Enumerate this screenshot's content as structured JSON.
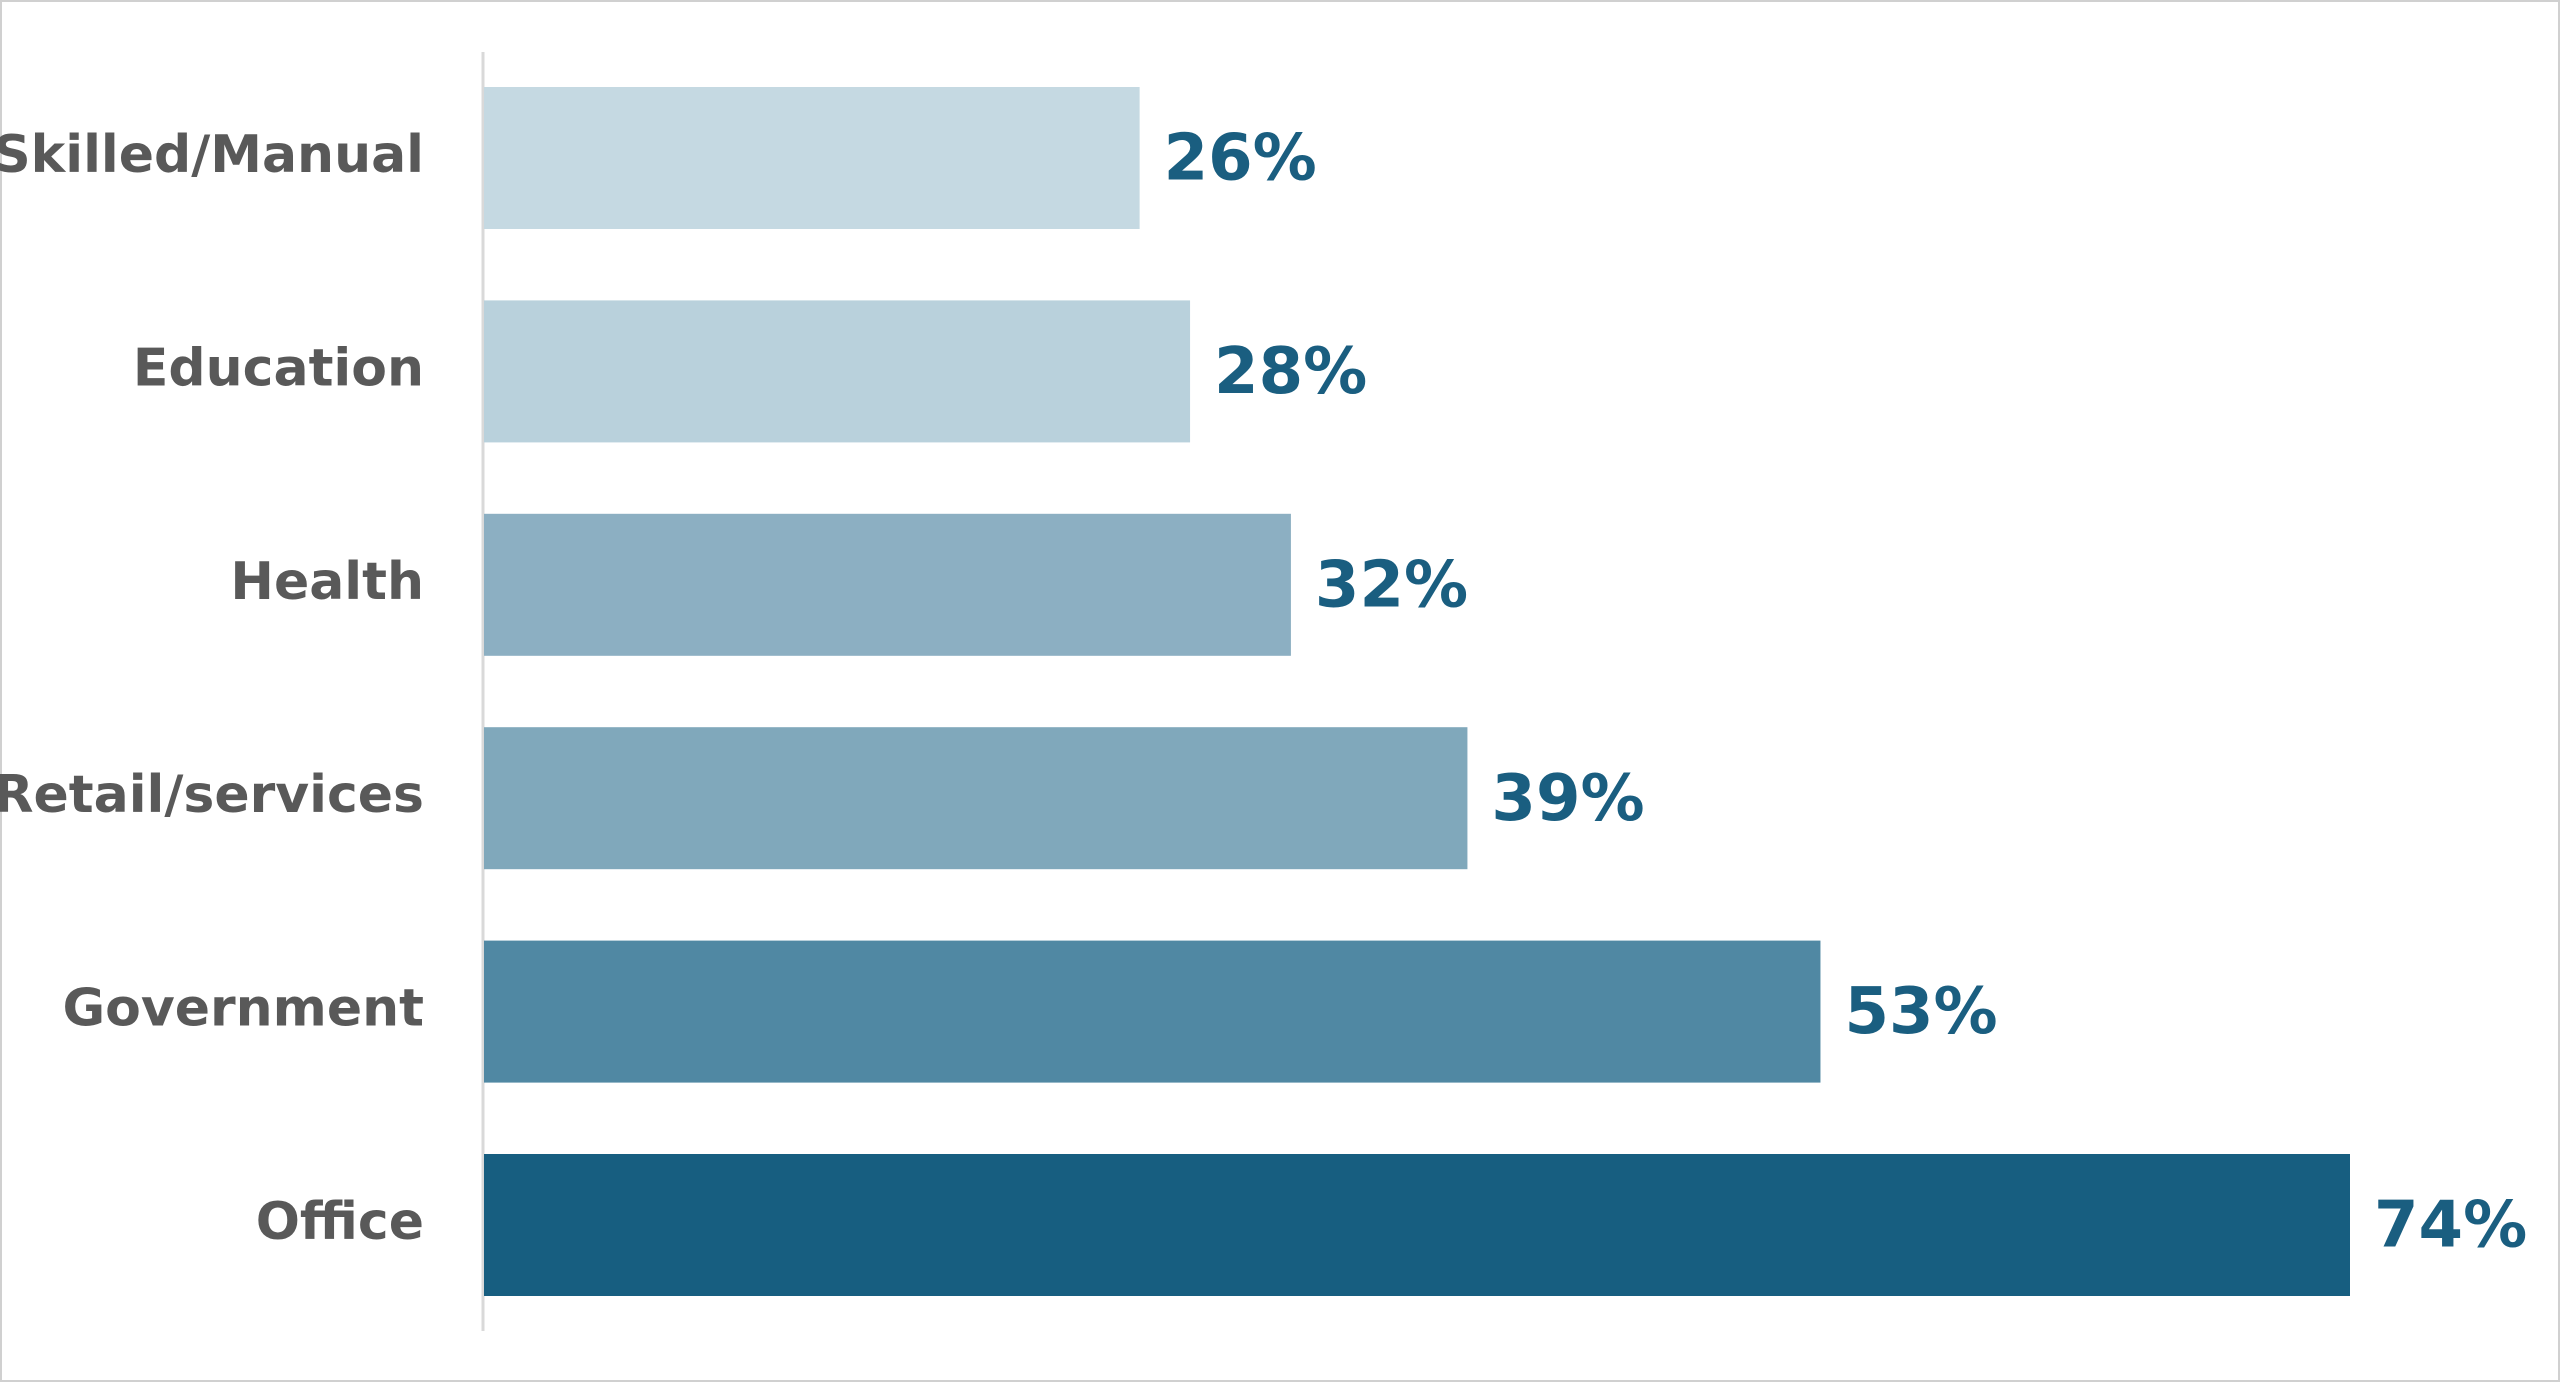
{
  "chart_data": {
    "type": "bar",
    "orientation": "horizontal",
    "categories": [
      "Skilled/Manual",
      "Education",
      "Health",
      "Retail/services",
      "Government",
      "Office"
    ],
    "values": [
      26,
      28,
      32,
      39,
      53,
      74
    ],
    "value_labels": [
      "26%",
      "28%",
      "32%",
      "39%",
      "53%",
      "74%"
    ],
    "colors": [
      "#c5d9e2",
      "#b9d1dc",
      "#8cafc2",
      "#80a8bb",
      "#5088a3",
      "#175e80"
    ],
    "label_color": "#1a5e80"
  }
}
